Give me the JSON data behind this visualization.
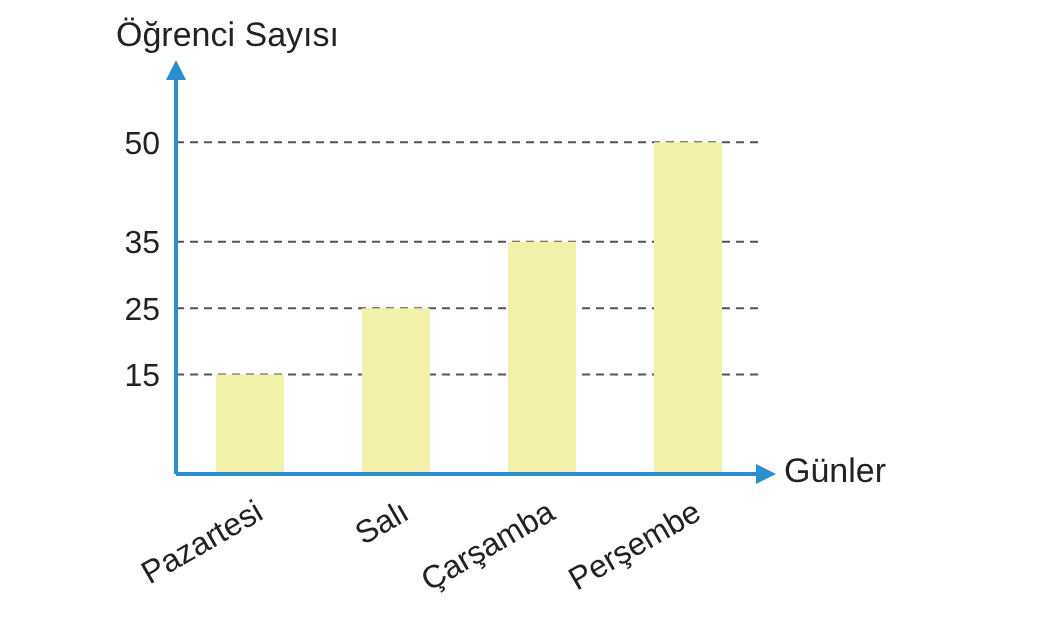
{
  "chart_data": {
    "type": "bar",
    "xlabel": "Günler",
    "ylabel": "Öğrenci Sayısı",
    "categories": [
      "Pazartesi",
      "Salı",
      "Çarşamba",
      "Perşembe"
    ],
    "values": [
      15,
      25,
      35,
      50
    ],
    "color": "#f3f1a9",
    "ylim": [
      0,
      60
    ],
    "yticks": [
      15,
      25,
      35,
      50
    ],
    "grid": "y",
    "line_style": "dashed"
  }
}
